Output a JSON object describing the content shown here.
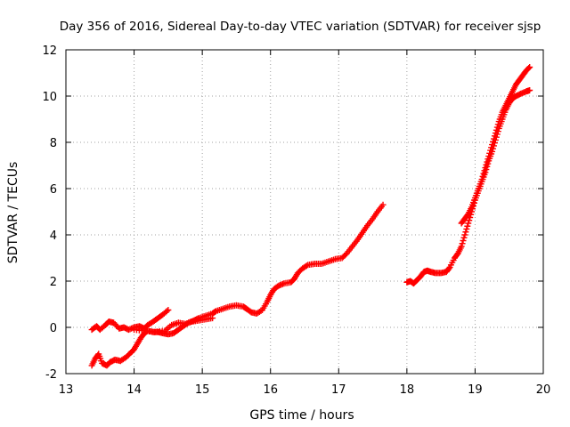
{
  "chart_data": {
    "type": "scatter",
    "title": "Day 356 of 2016, Sidereal Day-to-day VTEC variation (SDTVAR) for receiver sjsp",
    "xlabel": "GPS time / hours",
    "ylabel": "SDTVAR / TECUs",
    "xlim": [
      13,
      20
    ],
    "ylim": [
      -2,
      12
    ],
    "xticks": [
      "13",
      "14",
      "15",
      "16",
      "17",
      "18",
      "19",
      "20"
    ],
    "yticks": [
      "-2",
      "0",
      "2",
      "4",
      "6",
      "8",
      "10",
      "12"
    ],
    "grid": true,
    "marker": "plus",
    "series_color": "#ff0000",
    "series": [
      {
        "values": [
          [
            13.38,
            -0.1
          ],
          [
            13.45,
            0.05
          ],
          [
            13.5,
            -0.1
          ],
          [
            13.58,
            0.1
          ],
          [
            13.63,
            0.25
          ],
          [
            13.7,
            0.2
          ],
          [
            13.78,
            -0.05
          ],
          [
            13.85,
            0.0
          ],
          [
            13.92,
            -0.1
          ],
          [
            14.0,
            0.0
          ],
          [
            14.08,
            0.05
          ],
          [
            14.15,
            -0.05
          ],
          [
            14.2,
            0.1
          ],
          [
            14.28,
            0.25
          ],
          [
            14.35,
            0.4
          ],
          [
            14.42,
            0.55
          ],
          [
            14.5,
            0.75
          ]
        ]
      },
      {
        "values": [
          [
            13.38,
            -1.65
          ],
          [
            13.43,
            -1.35
          ],
          [
            13.48,
            -1.15
          ],
          [
            13.53,
            -1.55
          ],
          [
            13.6,
            -1.65
          ],
          [
            13.65,
            -1.5
          ],
          [
            13.72,
            -1.4
          ],
          [
            13.8,
            -1.45
          ],
          [
            13.88,
            -1.3
          ],
          [
            13.95,
            -1.1
          ],
          [
            14.0,
            -0.95
          ],
          [
            14.05,
            -0.7
          ],
          [
            14.1,
            -0.45
          ],
          [
            14.15,
            -0.25
          ],
          [
            14.2,
            -0.15
          ],
          [
            14.28,
            -0.2
          ],
          [
            14.35,
            -0.2
          ],
          [
            14.42,
            -0.25
          ],
          [
            14.5,
            -0.3
          ],
          [
            14.58,
            -0.25
          ],
          [
            14.65,
            -0.1
          ],
          [
            14.72,
            0.05
          ],
          [
            14.8,
            0.2
          ],
          [
            14.88,
            0.3
          ],
          [
            14.95,
            0.4
          ],
          [
            15.05,
            0.5
          ],
          [
            15.15,
            0.6
          ],
          [
            15.2,
            0.7
          ],
          [
            15.3,
            0.8
          ],
          [
            15.4,
            0.9
          ],
          [
            15.5,
            0.95
          ],
          [
            15.6,
            0.9
          ],
          [
            15.65,
            0.8
          ],
          [
            15.72,
            0.65
          ],
          [
            15.8,
            0.6
          ],
          [
            15.88,
            0.75
          ],
          [
            15.95,
            1.1
          ],
          [
            16.0,
            1.4
          ],
          [
            16.05,
            1.65
          ],
          [
            16.12,
            1.8
          ],
          [
            16.2,
            1.9
          ],
          [
            16.3,
            1.95
          ],
          [
            16.35,
            2.1
          ],
          [
            16.4,
            2.35
          ],
          [
            16.47,
            2.55
          ],
          [
            16.55,
            2.7
          ],
          [
            16.65,
            2.75
          ],
          [
            16.75,
            2.75
          ],
          [
            16.85,
            2.85
          ],
          [
            16.95,
            2.95
          ],
          [
            17.05,
            3.0
          ],
          [
            17.12,
            3.2
          ],
          [
            17.2,
            3.5
          ],
          [
            17.28,
            3.8
          ],
          [
            17.35,
            4.1
          ],
          [
            17.42,
            4.4
          ],
          [
            17.5,
            4.7
          ],
          [
            17.57,
            5.0
          ],
          [
            17.65,
            5.3
          ]
        ]
      },
      {
        "values": [
          [
            14.0,
            -0.1
          ],
          [
            14.15,
            -0.15
          ],
          [
            14.3,
            -0.2
          ],
          [
            14.45,
            -0.15
          ],
          [
            14.55,
            0.1
          ],
          [
            14.65,
            0.2
          ],
          [
            14.75,
            0.15
          ],
          [
            14.85,
            0.25
          ],
          [
            14.95,
            0.3
          ],
          [
            15.05,
            0.35
          ],
          [
            15.15,
            0.4
          ]
        ]
      },
      {
        "values": [
          [
            18.0,
            1.95
          ],
          [
            18.05,
            2.0
          ],
          [
            18.1,
            1.9
          ],
          [
            18.15,
            2.05
          ],
          [
            18.2,
            2.2
          ],
          [
            18.25,
            2.4
          ],
          [
            18.3,
            2.45
          ],
          [
            18.35,
            2.4
          ],
          [
            18.42,
            2.35
          ],
          [
            18.5,
            2.35
          ],
          [
            18.58,
            2.4
          ],
          [
            18.63,
            2.6
          ],
          [
            18.7,
            3.0
          ],
          [
            18.75,
            3.2
          ],
          [
            18.8,
            3.5
          ],
          [
            18.85,
            4.0
          ],
          [
            18.9,
            4.5
          ],
          [
            18.95,
            5.0
          ],
          [
            19.0,
            5.5
          ],
          [
            19.05,
            5.9
          ],
          [
            19.1,
            6.3
          ],
          [
            19.15,
            6.7
          ],
          [
            19.2,
            7.2
          ],
          [
            19.25,
            7.6
          ],
          [
            19.3,
            8.1
          ],
          [
            19.35,
            8.6
          ],
          [
            19.4,
            9.0
          ],
          [
            19.45,
            9.4
          ],
          [
            19.5,
            9.7
          ],
          [
            19.55,
            9.9
          ],
          [
            19.6,
            10.0
          ],
          [
            19.67,
            10.1
          ],
          [
            19.75,
            10.2
          ],
          [
            19.8,
            10.25
          ]
        ]
      },
      {
        "values": [
          [
            18.8,
            4.5
          ],
          [
            18.85,
            4.7
          ],
          [
            18.9,
            4.9
          ],
          [
            18.95,
            5.2
          ],
          [
            19.0,
            5.6
          ],
          [
            19.05,
            6.0
          ],
          [
            19.1,
            6.4
          ],
          [
            19.15,
            6.9
          ],
          [
            19.2,
            7.4
          ],
          [
            19.25,
            7.9
          ],
          [
            19.3,
            8.4
          ],
          [
            19.35,
            8.9
          ],
          [
            19.4,
            9.3
          ],
          [
            19.45,
            9.6
          ],
          [
            19.5,
            9.9
          ],
          [
            19.55,
            10.2
          ],
          [
            19.6,
            10.5
          ],
          [
            19.65,
            10.7
          ],
          [
            19.7,
            10.9
          ],
          [
            19.75,
            11.1
          ],
          [
            19.8,
            11.25
          ]
        ]
      }
    ]
  }
}
